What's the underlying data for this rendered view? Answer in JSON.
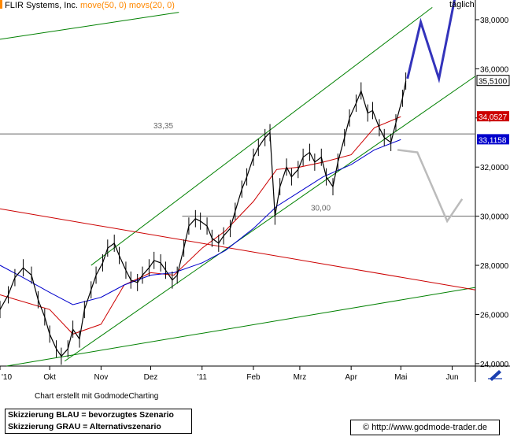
{
  "header": {
    "company": "FLIR Systems, Inc.",
    "indicator_move50": "move(50, 0)",
    "indicator_movs20": "movs(20, 0)",
    "period": "täglich"
  },
  "footer": {
    "credit": "Chart erstellt mit GodmodeCharting",
    "legend_blue": "Skizzierung BLAU = bevorzugtes Szenario",
    "legend_gray": "Skizzierung GRAU = Alternativszenario",
    "url": "© http://www.godmode-trader.de"
  },
  "colors": {
    "price": "#000000",
    "ma50": "#0000cc",
    "ma20": "#cc0000",
    "trend_channel": "#008000",
    "resistance_red": "#cc0000",
    "horizontal_levels": "#666666",
    "scenario_blue": "#3333bb",
    "scenario_gray": "#bbbbbb",
    "accent_orange": "#ff8800"
  },
  "chart_data": {
    "type": "line",
    "title": "FLIR Systems, Inc.",
    "xlabel": "",
    "ylabel": "",
    "ylim": [
      23.9,
      38.8
    ],
    "x_ticks": [
      "'10",
      "Okt",
      "Nov",
      "Dez",
      "'11",
      "Feb",
      "Mrz",
      "Apr",
      "Mai",
      "Jun"
    ],
    "y_ticks": [
      "24,0000",
      "26,0000",
      "28,0000",
      "30,0000",
      "32,0000",
      "34,0000",
      "36,0000",
      "38,0000"
    ],
    "grid": false,
    "x_range": [
      "2010-09-01",
      "2011-06-15"
    ],
    "price_close": [
      [
        "2010-09-01",
        26.2
      ],
      [
        "2010-09-06",
        26.8
      ],
      [
        "2010-09-10",
        27.5
      ],
      [
        "2010-09-15",
        27.9
      ],
      [
        "2010-09-20",
        27.6
      ],
      [
        "2010-09-24",
        26.6
      ],
      [
        "2010-09-28",
        25.9
      ],
      [
        "2010-10-01",
        25.2
      ],
      [
        "2010-10-05",
        24.6
      ],
      [
        "2010-10-08",
        24.3
      ],
      [
        "2010-10-12",
        24.6
      ],
      [
        "2010-10-15",
        25.4
      ],
      [
        "2010-10-19",
        25.0
      ],
      [
        "2010-10-22",
        26.2
      ],
      [
        "2010-10-26",
        27.0
      ],
      [
        "2010-10-29",
        27.6
      ],
      [
        "2010-11-02",
        28.1
      ],
      [
        "2010-11-05",
        28.7
      ],
      [
        "2010-11-09",
        28.9
      ],
      [
        "2010-11-12",
        28.4
      ],
      [
        "2010-11-16",
        27.8
      ],
      [
        "2010-11-19",
        27.4
      ],
      [
        "2010-11-23",
        27.3
      ],
      [
        "2010-11-26",
        27.6
      ],
      [
        "2010-11-30",
        27.9
      ],
      [
        "2010-12-03",
        28.2
      ],
      [
        "2010-12-07",
        28.1
      ],
      [
        "2010-12-10",
        27.8
      ],
      [
        "2010-12-14",
        27.4
      ],
      [
        "2010-12-17",
        27.6
      ],
      [
        "2010-12-21",
        28.7
      ],
      [
        "2010-12-24",
        29.6
      ],
      [
        "2010-12-28",
        29.9
      ],
      [
        "2010-12-31",
        29.8
      ],
      [
        "2011-01-04",
        29.6
      ],
      [
        "2011-01-07",
        29.1
      ],
      [
        "2011-01-11",
        28.9
      ],
      [
        "2011-01-14",
        29.2
      ],
      [
        "2011-01-18",
        29.5
      ],
      [
        "2011-01-21",
        30.2
      ],
      [
        "2011-01-25",
        31.1
      ],
      [
        "2011-01-28",
        31.6
      ],
      [
        "2011-02-01",
        32.4
      ],
      [
        "2011-02-04",
        32.8
      ],
      [
        "2011-02-08",
        33.2
      ],
      [
        "2011-02-11",
        33.4
      ],
      [
        "2011-02-14",
        30.0
      ],
      [
        "2011-02-17",
        31.2
      ],
      [
        "2011-02-21",
        32.0
      ],
      [
        "2011-02-24",
        31.6
      ],
      [
        "2011-02-28",
        31.9
      ],
      [
        "2011-03-03",
        32.4
      ],
      [
        "2011-03-07",
        32.6
      ],
      [
        "2011-03-10",
        32.2
      ],
      [
        "2011-03-14",
        32.4
      ],
      [
        "2011-03-17",
        31.6
      ],
      [
        "2011-03-21",
        31.2
      ],
      [
        "2011-03-24",
        32.2
      ],
      [
        "2011-03-28",
        33.2
      ],
      [
        "2011-03-31",
        34.0
      ],
      [
        "2011-04-04",
        34.6
      ],
      [
        "2011-04-07",
        35.1
      ],
      [
        "2011-04-11",
        34.2
      ],
      [
        "2011-04-14",
        34.3
      ],
      [
        "2011-04-18",
        33.6
      ],
      [
        "2011-04-21",
        33.2
      ],
      [
        "2011-04-25",
        33.0
      ],
      [
        "2011-04-28",
        33.8
      ],
      [
        "2011-05-02",
        34.8
      ],
      [
        "2011-05-04",
        35.5
      ]
    ],
    "series": [
      {
        "name": "movs(20, 0)",
        "values": [
          [
            "2010-09-01",
            26.8
          ],
          [
            "2010-10-01",
            26.2
          ],
          [
            "2010-10-15",
            25.2
          ],
          [
            "2010-11-01",
            25.6
          ],
          [
            "2010-11-15",
            27.2
          ],
          [
            "2010-12-01",
            27.7
          ],
          [
            "2010-12-15",
            27.6
          ],
          [
            "2011-01-01",
            28.7
          ],
          [
            "2011-01-15",
            29.4
          ],
          [
            "2011-02-01",
            30.6
          ],
          [
            "2011-02-15",
            31.9
          ],
          [
            "2011-03-01",
            32.0
          ],
          [
            "2011-03-15",
            32.2
          ],
          [
            "2011-04-01",
            32.5
          ],
          [
            "2011-04-15",
            33.6
          ],
          [
            "2011-05-01",
            34.05
          ]
        ]
      },
      {
        "name": "move(50, 0)",
        "values": [
          [
            "2010-09-01",
            28.0
          ],
          [
            "2010-09-15",
            27.5
          ],
          [
            "2010-10-01",
            26.9
          ],
          [
            "2010-10-15",
            26.4
          ],
          [
            "2010-11-01",
            26.7
          ],
          [
            "2010-11-15",
            27.2
          ],
          [
            "2010-12-01",
            27.6
          ],
          [
            "2010-12-15",
            27.7
          ],
          [
            "2011-01-01",
            28.1
          ],
          [
            "2011-01-15",
            28.6
          ],
          [
            "2011-02-01",
            29.5
          ],
          [
            "2011-02-15",
            30.4
          ],
          [
            "2011-03-01",
            31.0
          ],
          [
            "2011-03-15",
            31.6
          ],
          [
            "2011-04-01",
            32.1
          ],
          [
            "2011-04-15",
            32.7
          ],
          [
            "2011-05-01",
            33.12
          ]
        ]
      }
    ],
    "last_values": [
      "35,5100",
      "34,0527",
      "33,1158"
    ],
    "levels": [
      {
        "label": "33,35",
        "value": 33.35,
        "from": "2010-09-01",
        "to": "2011-06-15"
      },
      {
        "label": "30,00",
        "value": 30.0,
        "from": "2010-12-20",
        "to": "2011-06-15"
      }
    ],
    "trendlines": [
      {
        "color_key": "trend_channel",
        "from": [
          "2010-09-01",
          37.2
        ],
        "to": [
          "2010-12-18",
          38.3
        ]
      },
      {
        "color_key": "trend_channel",
        "from": [
          "2010-10-26",
          28.0
        ],
        "to": [
          "2011-05-20",
          38.5
        ]
      },
      {
        "color_key": "trend_channel",
        "from": [
          "2010-10-10",
          24.1
        ],
        "to": [
          "2011-06-15",
          35.7
        ]
      },
      {
        "color_key": "trend_channel",
        "from": [
          "2010-09-05",
          23.9
        ],
        "to": [
          "2011-06-15",
          27.1
        ]
      },
      {
        "color_key": "resistance_red",
        "from": [
          "2010-09-01",
          30.3
        ],
        "to": [
          "2011-06-15",
          27.0
        ]
      }
    ],
    "scenario_blue": [
      [
        "2011-05-05",
        35.6
      ],
      [
        "2011-05-13",
        37.9
      ],
      [
        "2011-05-24",
        35.6
      ],
      [
        "2011-06-03",
        39.0
      ]
    ],
    "scenario_gray": [
      [
        "2011-04-29",
        32.7
      ],
      [
        "2011-05-11",
        32.6
      ],
      [
        "2011-05-29",
        29.8
      ],
      [
        "2011-06-07",
        30.7
      ]
    ]
  }
}
